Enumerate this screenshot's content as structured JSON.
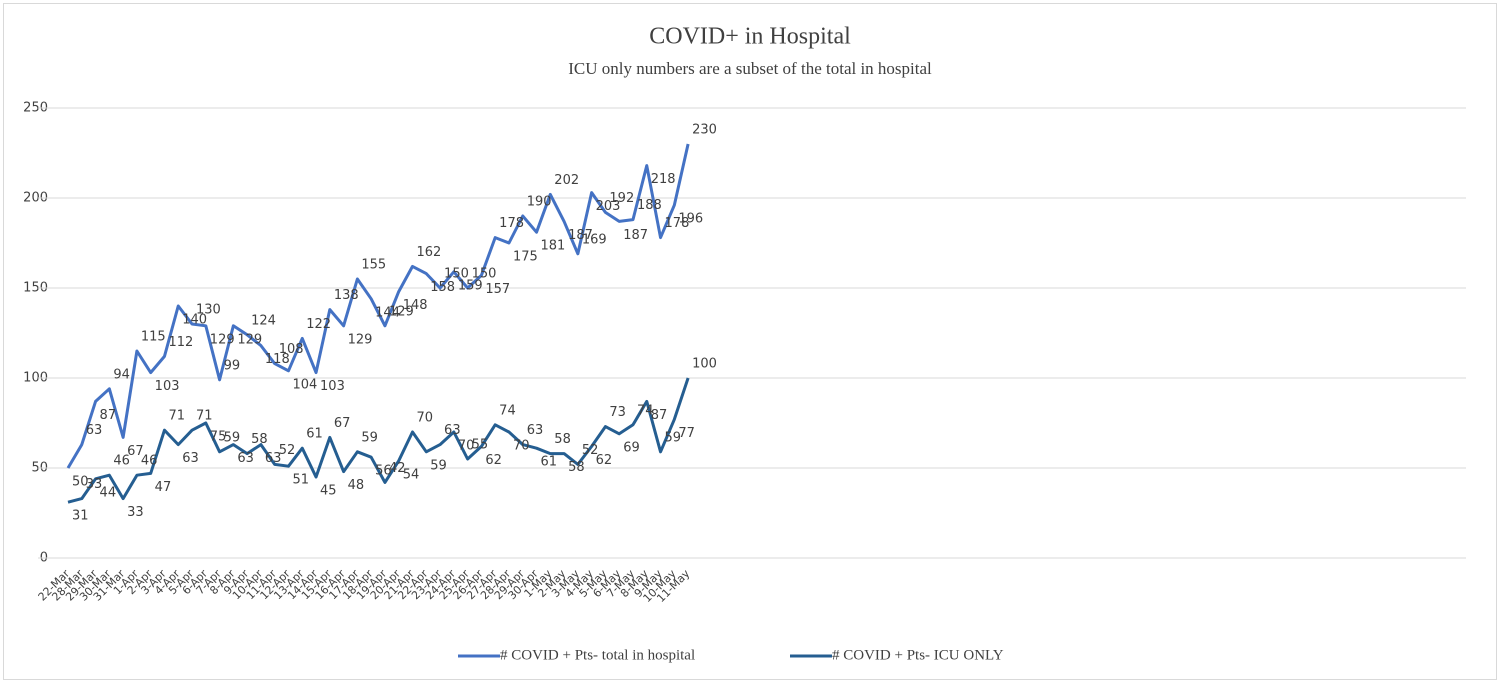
{
  "chart_data": {
    "type": "line",
    "title": "COVID+ in Hospital",
    "subtitle": "ICU only numbers are a subset of the total in hospital",
    "categories": [
      "22-Mar",
      "28-Mar",
      "29-Mar",
      "30-Mar",
      "31-Mar",
      "1-Apr",
      "2-Apr",
      "3-Apr",
      "4-Apr",
      "5-Apr",
      "6-Apr",
      "7-Apr",
      "8-Apr",
      "9-Apr",
      "10-Apr",
      "11-Apr",
      "12-Apr",
      "13-Apr",
      "14-Apr",
      "15-Apr",
      "16-Apr",
      "17-Apr",
      "18-Apr",
      "19-Apr",
      "20-Apr",
      "21-Apr",
      "22-Apr",
      "23-Apr",
      "24-Apr",
      "25-Apr",
      "26-Apr",
      "27-Apr",
      "28-Apr",
      "29-Apr",
      "30-Apr",
      "1-May",
      "2-May",
      "3-May",
      "4-May",
      "5-May",
      "6-May",
      "7-May",
      "8-May",
      "9-May",
      "10-May",
      "11-May"
    ],
    "series": [
      {
        "name": "# COVID + Pts- total in hospital",
        "color": "#4472c4",
        "values": [
          50,
          63,
          87,
          94,
          67,
          115,
          103,
          112,
          140,
          130,
          129,
          99,
          129,
          124,
          118,
          108,
          104,
          122,
          103,
          138,
          129,
          155,
          144,
          129,
          148,
          162,
          158,
          150,
          159,
          150,
          157,
          178,
          175,
          190,
          181,
          202,
          187,
          169,
          203,
          192,
          187,
          188,
          218,
          178,
          196,
          230
        ]
      },
      {
        "name": "# COVID + Pts- ICU ONLY",
        "color": "#255e91",
        "values": [
          31,
          33,
          44,
          46,
          33,
          46,
          47,
          71,
          63,
          71,
          75,
          59,
          63,
          58,
          63,
          52,
          51,
          61,
          45,
          67,
          48,
          59,
          56,
          42,
          54,
          70,
          59,
          63,
          70,
          55,
          62,
          74,
          70,
          63,
          61,
          58,
          58,
          52,
          62,
          73,
          69,
          74,
          87,
          59,
          77,
          100
        ]
      }
    ],
    "ylim": [
      0,
      250
    ],
    "yticks": [
      0,
      50,
      100,
      150,
      200,
      250
    ],
    "grid": true,
    "legend": "bottom"
  }
}
